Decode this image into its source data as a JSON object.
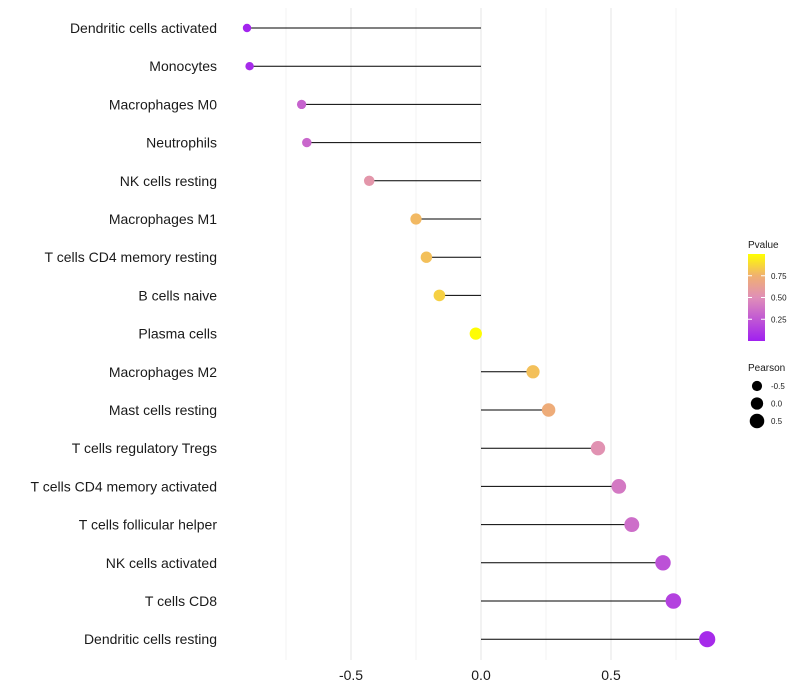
{
  "chart_data": {
    "type": "lollipop",
    "categories": [
      "Dendritic cells activated",
      "Monocytes",
      "Macrophages M0",
      "Neutrophils",
      "NK cells resting",
      "Macrophages M1",
      "T cells CD4 memory resting",
      "B cells naive",
      "Plasma cells",
      "Macrophages M2",
      "Mast cells resting",
      "T cells regulatory  Tregs",
      "T cells CD4 memory activated",
      "T cells follicular helper",
      "NK cells activated",
      "T cells CD8",
      "Dendritic cells resting"
    ],
    "pearson": [
      -0.9,
      -0.89,
      -0.69,
      -0.67,
      -0.43,
      -0.25,
      -0.21,
      -0.16,
      -0.02,
      0.2,
      0.26,
      0.45,
      0.53,
      0.58,
      0.7,
      0.74,
      0.87
    ],
    "pvalue": [
      0.02,
      0.05,
      0.3,
      0.32,
      0.55,
      0.78,
      0.8,
      0.85,
      0.99,
      0.8,
      0.72,
      0.52,
      0.4,
      0.35,
      0.22,
      0.15,
      0.05
    ],
    "xlim": [
      -0.9,
      0.87
    ],
    "xticks": [
      -0.5,
      0.0,
      0.5
    ],
    "xtick_labels": [
      "-0.5",
      "0.0",
      "0.5"
    ],
    "grid": true,
    "legend": {
      "color_title": "Pvalue",
      "color_ticks": [
        0.75,
        0.5,
        0.25
      ],
      "color_tick_labels": [
        "0.75",
        "0.50",
        "0.25"
      ],
      "color_low": "#a020f0",
      "color_high": "#ffff00",
      "size_title": "Pearson",
      "size_values": [
        -0.5,
        0.0,
        0.5
      ],
      "size_labels": [
        "-0.5",
        "0.0",
        "0.5"
      ],
      "placement": "right"
    }
  }
}
